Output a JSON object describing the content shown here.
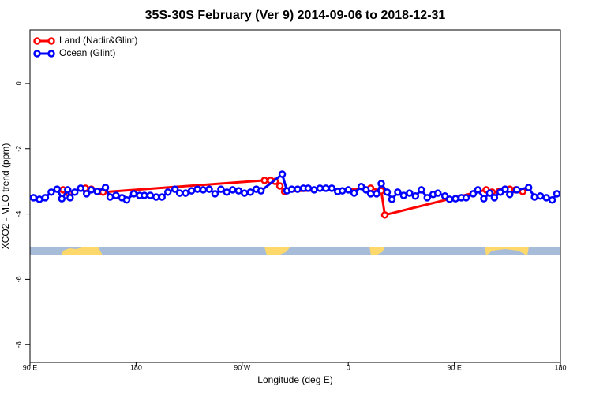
{
  "chart_data": {
    "type": "line",
    "title": "35S-30S February (Ver 9)   2014-09-06 to 2018-12-31",
    "x_label": "Longitude (deg E)",
    "y_label": "XCO2 - MLO trend (ppm)",
    "xlim": [
      90,
      540
    ],
    "ylim": [
      -8.55,
      1.64
    ],
    "xticks": [
      {
        "value": 90,
        "label": "90 E"
      },
      180,
      {
        "value": 270,
        "label": "90 W"
      },
      {
        "value": 360,
        "label": "0"
      },
      {
        "value": 450,
        "label": "90 E"
      },
      {
        "value": 540,
        "label": "180"
      }
    ],
    "yticks": [
      0,
      -2,
      -4,
      -6,
      -8
    ],
    "legend": "top-left",
    "series": [
      {
        "name": "Land (Nadir&Glint)",
        "color": "#ff0000",
        "x": [
          118,
          123,
          137,
          142,
          148,
          152,
          289,
          294,
          298,
          302,
          306,
          379,
          388,
          391,
          477,
          482,
          488,
          493,
          497,
          502,
          508
        ],
        "values": [
          -3.26,
          -3.36,
          -3.21,
          -3.24,
          -3.31,
          -3.33,
          -2.97,
          -2.97,
          -3.0,
          -3.14,
          -3.31,
          -3.21,
          -3.29,
          -4.03,
          -3.26,
          -3.33,
          -3.31,
          -3.24,
          -3.24,
          -3.26,
          -3.31
        ]
      },
      {
        "name": "Ocean (Glint)",
        "color": "#0000ff",
        "x": [
          93,
          98,
          103,
          108,
          113,
          117,
          122,
          124,
          128,
          133,
          138,
          142,
          147,
          154,
          158,
          163,
          168,
          172,
          178,
          183,
          187,
          192,
          197,
          202,
          207,
          213,
          217,
          222,
          227,
          232,
          237,
          242,
          247,
          252,
          257,
          262,
          267,
          272,
          277,
          282,
          286,
          304,
          308,
          312,
          317,
          322,
          326,
          331,
          336,
          341,
          346,
          351,
          355,
          360,
          365,
          371,
          375,
          379,
          384,
          388,
          393,
          397,
          402,
          407,
          412,
          417,
          422,
          427,
          432,
          436,
          442,
          446,
          451,
          456,
          460,
          466,
          470,
          475,
          480,
          484,
          489,
          493,
          497,
          503,
          513,
          518,
          523,
          528,
          533,
          537
        ],
        "values": [
          -3.5,
          -3.55,
          -3.5,
          -3.33,
          -3.24,
          -3.53,
          -3.26,
          -3.5,
          -3.33,
          -3.21,
          -3.38,
          -3.26,
          -3.31,
          -3.19,
          -3.48,
          -3.43,
          -3.5,
          -3.57,
          -3.38,
          -3.43,
          -3.43,
          -3.43,
          -3.48,
          -3.48,
          -3.33,
          -3.24,
          -3.36,
          -3.36,
          -3.29,
          -3.24,
          -3.26,
          -3.24,
          -3.38,
          -3.24,
          -3.33,
          -3.26,
          -3.29,
          -3.36,
          -3.33,
          -3.24,
          -3.29,
          -2.78,
          -3.29,
          -3.24,
          -3.24,
          -3.21,
          -3.21,
          -3.26,
          -3.21,
          -3.21,
          -3.21,
          -3.31,
          -3.29,
          -3.26,
          -3.36,
          -3.16,
          -3.26,
          -3.38,
          -3.38,
          -3.07,
          -3.33,
          -3.55,
          -3.33,
          -3.43,
          -3.36,
          -3.45,
          -3.26,
          -3.5,
          -3.4,
          -3.36,
          -3.45,
          -3.55,
          -3.53,
          -3.5,
          -3.5,
          -3.38,
          -3.26,
          -3.53,
          -3.36,
          -3.5,
          -3.33,
          -3.24,
          -3.4,
          -3.26,
          -3.19,
          -3.48,
          -3.45,
          -3.5,
          -3.57,
          -3.38
        ]
      }
    ]
  }
}
